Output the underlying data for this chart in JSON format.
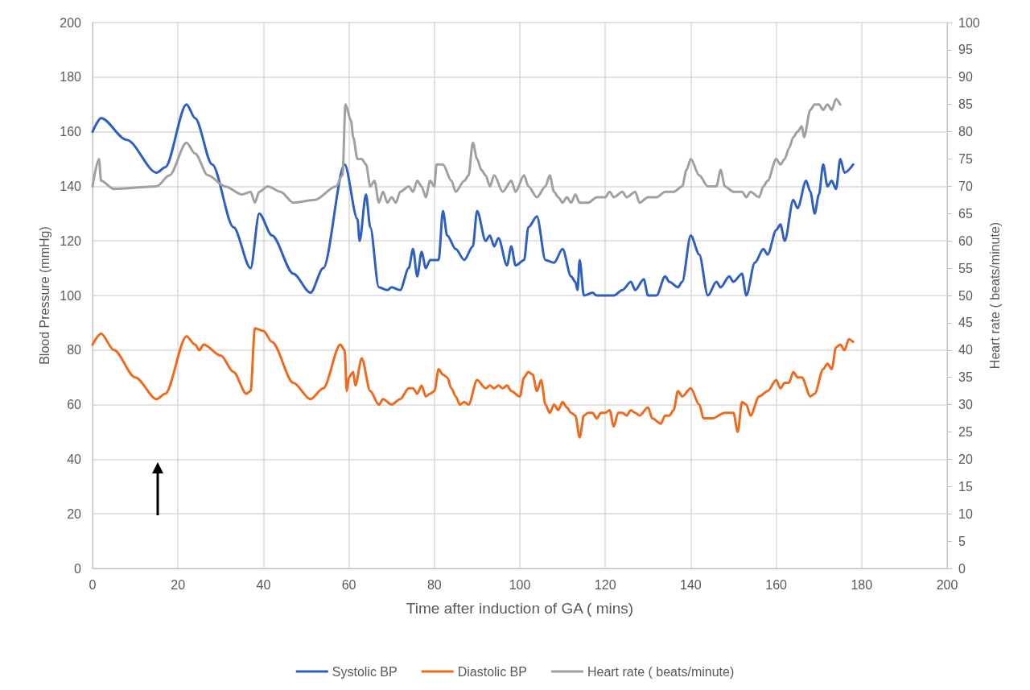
{
  "chart_data": {
    "type": "line",
    "xlabel": "Time after induction of GA ( mins)",
    "ylabel": "Blood Pressure (mmHg)",
    "y2label": "Heart rate ( beats/minute)",
    "xlim": [
      0,
      200
    ],
    "xticks": [
      0,
      20,
      40,
      60,
      80,
      100,
      120,
      140,
      160,
      180,
      200
    ],
    "ylim": [
      0,
      200
    ],
    "yticks": [
      0,
      20,
      40,
      60,
      80,
      100,
      120,
      140,
      160,
      180,
      200
    ],
    "y2lim": [
      0,
      100
    ],
    "y2ticks": [
      0,
      5,
      10,
      15,
      20,
      25,
      30,
      35,
      40,
      45,
      50,
      55,
      60,
      65,
      70,
      75,
      80,
      85,
      90,
      95,
      100
    ],
    "grid": true,
    "legend": "bottom",
    "marker": "none",
    "line_style": "solid",
    "series": [
      {
        "name": "Systolic BP",
        "color": "#2e5fc1",
        "x": [
          0,
          2,
          8,
          15,
          17,
          22,
          24,
          28,
          33,
          37,
          39,
          42,
          47,
          51,
          54,
          59,
          62,
          62.5,
          64,
          65,
          67,
          69,
          70,
          72,
          74,
          75,
          76,
          77,
          78,
          79,
          81,
          82,
          83,
          85,
          87,
          89,
          90,
          92,
          93,
          94,
          95,
          97,
          98,
          99,
          101,
          102,
          104,
          106,
          108,
          110,
          112,
          113,
          113.5,
          114,
          115,
          117,
          118,
          122,
          124,
          126,
          127,
          129,
          130,
          132,
          134,
          135,
          137,
          138,
          140,
          142,
          144,
          146,
          147,
          149,
          150,
          152,
          153,
          155,
          157,
          158,
          160,
          161,
          162,
          164,
          165,
          167,
          168,
          169,
          170,
          171,
          172,
          173,
          174,
          175,
          176,
          178
        ],
        "values": [
          160,
          165,
          157,
          145,
          147,
          170,
          165,
          148,
          125,
          110,
          130,
          122,
          108,
          101,
          110,
          148,
          128,
          120,
          137,
          125,
          103,
          102,
          103,
          102,
          110,
          117,
          107,
          116,
          110,
          113,
          113,
          131,
          122,
          117,
          113,
          118,
          131,
          120,
          122,
          118,
          121,
          111,
          118,
          111,
          113,
          125,
          129,
          113,
          112,
          117,
          107,
          105,
          102,
          113,
          100,
          101,
          100,
          100,
          102,
          105,
          102,
          106,
          100,
          100,
          107,
          105,
          103,
          105,
          122,
          115,
          100,
          105,
          103,
          107,
          105,
          108,
          100,
          112,
          117,
          115,
          124,
          126,
          120,
          135,
          132,
          142,
          138,
          130,
          137,
          148,
          140,
          142,
          139,
          150,
          145,
          148
        ]
      },
      {
        "name": "Diastolic BP",
        "color": "#ee6a1c",
        "x": [
          0,
          2,
          5,
          10,
          15,
          17,
          22,
          24,
          25,
          26,
          30,
          33,
          36,
          37,
          38,
          40,
          42,
          47,
          51,
          54,
          58,
          59,
          59.5,
          60,
          61,
          61.5,
          63,
          65,
          67,
          68,
          70,
          72,
          74,
          75,
          76,
          77,
          78,
          79,
          80,
          81,
          82,
          83,
          84,
          85,
          86,
          87,
          88,
          90,
          92,
          93,
          94,
          95,
          96,
          97,
          98,
          100,
          101,
          102,
          103,
          104,
          105,
          106,
          107,
          108,
          109,
          110,
          111,
          112,
          113,
          114,
          115,
          116,
          117,
          118,
          119,
          120,
          121,
          122,
          123,
          124,
          125,
          126,
          127,
          128,
          130,
          131,
          133,
          134,
          135,
          136,
          137,
          138,
          140,
          142,
          143,
          145,
          148,
          150,
          151,
          152,
          153,
          154,
          156,
          158,
          160,
          161,
          162,
          163,
          164,
          165,
          166,
          168,
          169,
          171,
          172,
          173,
          174,
          175,
          176,
          177,
          178
        ],
        "values": [
          82,
          86,
          80,
          70,
          62,
          64,
          85,
          82,
          80,
          82,
          78,
          72,
          64,
          65,
          88,
          87,
          83,
          68,
          62,
          66,
          82,
          80,
          65,
          70,
          72,
          67,
          77,
          65,
          60,
          62,
          60,
          62,
          66,
          66,
          64,
          67,
          63,
          64,
          65,
          73,
          71,
          70,
          66,
          63,
          60,
          61,
          60,
          69,
          66,
          67,
          66,
          67,
          66,
          67,
          65,
          63,
          70,
          72,
          71,
          65,
          69,
          60,
          57,
          60,
          58,
          61,
          59,
          57,
          56,
          48,
          56,
          57,
          57,
          55,
          57,
          57,
          58,
          52,
          57,
          57,
          56,
          58,
          57,
          56,
          59,
          55,
          53,
          56,
          56,
          58,
          65,
          63,
          66,
          60,
          55,
          55,
          57,
          57,
          50,
          61,
          60,
          56,
          63,
          65,
          69,
          66,
          68,
          68,
          72,
          70,
          70,
          63,
          64,
          73,
          75,
          73,
          81,
          82,
          80,
          84,
          83
        ]
      },
      {
        "name": "Heart rate ( beats/minute)",
        "color": "#a0a0a0",
        "axis": "y2",
        "x": [
          0,
          1.5,
          2,
          5,
          15,
          18,
          22,
          24,
          27,
          31,
          35,
          37,
          38,
          39,
          41,
          44,
          47,
          52,
          57,
          58.5,
          59.2,
          60.5,
          61,
          62,
          63,
          64,
          65,
          66,
          67,
          68,
          69,
          70,
          71,
          72,
          74,
          75,
          76,
          77,
          78,
          79,
          80,
          80.5,
          82,
          84,
          85,
          87,
          88,
          89,
          90,
          91,
          92,
          93,
          94,
          96,
          98,
          99,
          101,
          102,
          104,
          106,
          107,
          108,
          109,
          110,
          111,
          112,
          113,
          114,
          116,
          118,
          120,
          121,
          122,
          124,
          125,
          127,
          128,
          130,
          132,
          134,
          136,
          138,
          139,
          140,
          142,
          144,
          146,
          147,
          148,
          150,
          152,
          153,
          154,
          156,
          157,
          158,
          160,
          161,
          162,
          163,
          164,
          165,
          166,
          166.5,
          168,
          169,
          170,
          171,
          172,
          173,
          174,
          175
        ],
        "values": [
          70,
          75,
          71,
          69.5,
          70,
          72,
          78,
          76,
          72,
          70,
          68.5,
          69,
          67,
          69,
          70,
          69,
          67,
          67.5,
          70,
          72,
          85,
          82,
          79,
          75,
          75,
          74,
          70,
          71,
          67,
          69,
          67,
          68,
          67,
          69,
          70,
          69,
          71,
          70,
          68,
          71,
          70,
          74,
          74,
          71,
          69,
          71,
          72,
          78,
          75,
          73,
          72,
          70,
          72,
          69,
          71,
          69,
          72,
          70,
          68,
          70,
          72,
          69,
          68,
          67,
          68,
          67,
          68.5,
          67,
          67,
          68,
          68,
          69,
          68,
          69,
          68,
          69,
          67,
          68,
          68,
          69,
          69,
          70,
          73,
          75,
          72,
          70,
          70,
          73,
          70,
          69,
          69,
          68,
          69,
          68,
          70,
          71,
          75,
          74,
          75,
          77,
          79,
          80,
          81,
          79,
          84,
          85,
          85,
          84,
          85,
          84,
          86,
          85
        ]
      }
    ]
  }
}
